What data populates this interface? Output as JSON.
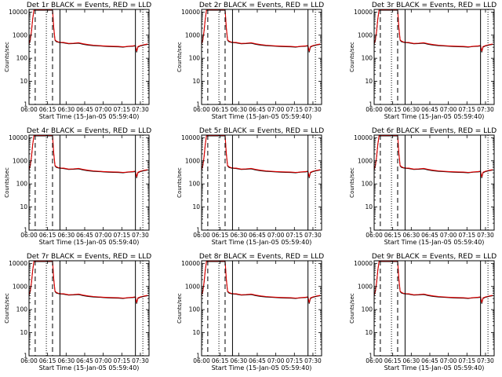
{
  "chart_data": {
    "type": "line",
    "layout": "3x3 grid",
    "common": {
      "xlabel": "Start Time (15-Jan-05 05:59:40)",
      "ylabel": "Counts/sec",
      "x_tick_labels": [
        "06:00",
        "06:15",
        "06:30",
        "06:45",
        "07:00",
        "07:15",
        "07:30"
      ],
      "x_ticks_minutes": [
        0,
        15,
        30,
        45,
        60,
        75,
        90
      ],
      "xlim_minutes": [
        0,
        97
      ],
      "y_scale": "log",
      "ylim": [
        1,
        13000
      ],
      "y_tick_labels": [
        "1",
        "10",
        "100",
        "1000",
        "10000"
      ],
      "y_ticks": [
        1,
        10,
        100,
        1000,
        10000
      ],
      "grid": false,
      "legend": "none",
      "colors": {
        "events": "#000000",
        "lld": "#e00000"
      },
      "series": [
        {
          "key": "events",
          "color": "#000000",
          "x": [
            0,
            1,
            2,
            3,
            4,
            5,
            6,
            8,
            12,
            16,
            18,
            19,
            20,
            21,
            22,
            24,
            26,
            28,
            32,
            36,
            40,
            44,
            48,
            52,
            56,
            60,
            64,
            68,
            72,
            76,
            78,
            80,
            84,
            86,
            87,
            88,
            90,
            92,
            94,
            96
          ],
          "y": [
            400,
            600,
            1500,
            5000,
            12000,
            12000,
            12000,
            12000,
            12000,
            12000,
            12000,
            12000,
            2000,
            600,
            520,
            480,
            470,
            460,
            420,
            430,
            450,
            400,
            370,
            350,
            340,
            330,
            320,
            315,
            310,
            300,
            310,
            320,
            330,
            340,
            180,
            300,
            340,
            360,
            380,
            400
          ]
        },
        {
          "key": "lld",
          "color": "#e00000",
          "x": [
            0,
            1,
            2,
            3,
            4,
            5,
            6,
            8,
            12,
            16,
            18,
            19,
            20,
            21,
            22,
            24,
            26,
            28,
            32,
            36,
            40,
            44,
            48,
            52,
            56,
            60,
            64,
            68,
            72,
            76,
            78,
            80,
            84,
            86,
            87,
            88,
            90,
            92,
            94,
            96
          ],
          "y": [
            420,
            640,
            1600,
            5200,
            12500,
            12500,
            12500,
            12500,
            12500,
            12500,
            12500,
            12500,
            2200,
            640,
            560,
            500,
            490,
            480,
            440,
            450,
            470,
            420,
            390,
            370,
            355,
            345,
            335,
            330,
            325,
            315,
            320,
            330,
            345,
            355,
            200,
            320,
            355,
            375,
            395,
            415
          ]
        }
      ],
      "vertical_markers": [
        {
          "x": 5,
          "style": "dashed"
        },
        {
          "x": 14,
          "style": "dotted"
        },
        {
          "x": 19,
          "style": "dashed"
        },
        {
          "x": 25,
          "style": "solid"
        },
        {
          "x": 86,
          "style": "solid"
        },
        {
          "x": 92,
          "style": "dotted"
        }
      ]
    },
    "panels": [
      {
        "title": "Det  1r BLACK = Events, RED = LLD"
      },
      {
        "title": "Det  2r BLACK = Events, RED = LLD"
      },
      {
        "title": "Det  3r BLACK = Events, RED = LLD"
      },
      {
        "title": "Det  4r BLACK = Events, RED = LLD"
      },
      {
        "title": "Det  5r BLACK = Events, RED = LLD"
      },
      {
        "title": "Det  6r BLACK = Events, RED = LLD"
      },
      {
        "title": "Det  7r BLACK = Events, RED = LLD"
      },
      {
        "title": "Det  8r BLACK = Events, RED = LLD"
      },
      {
        "title": "Det  9r BLACK = Events, RED = LLD"
      }
    ]
  }
}
